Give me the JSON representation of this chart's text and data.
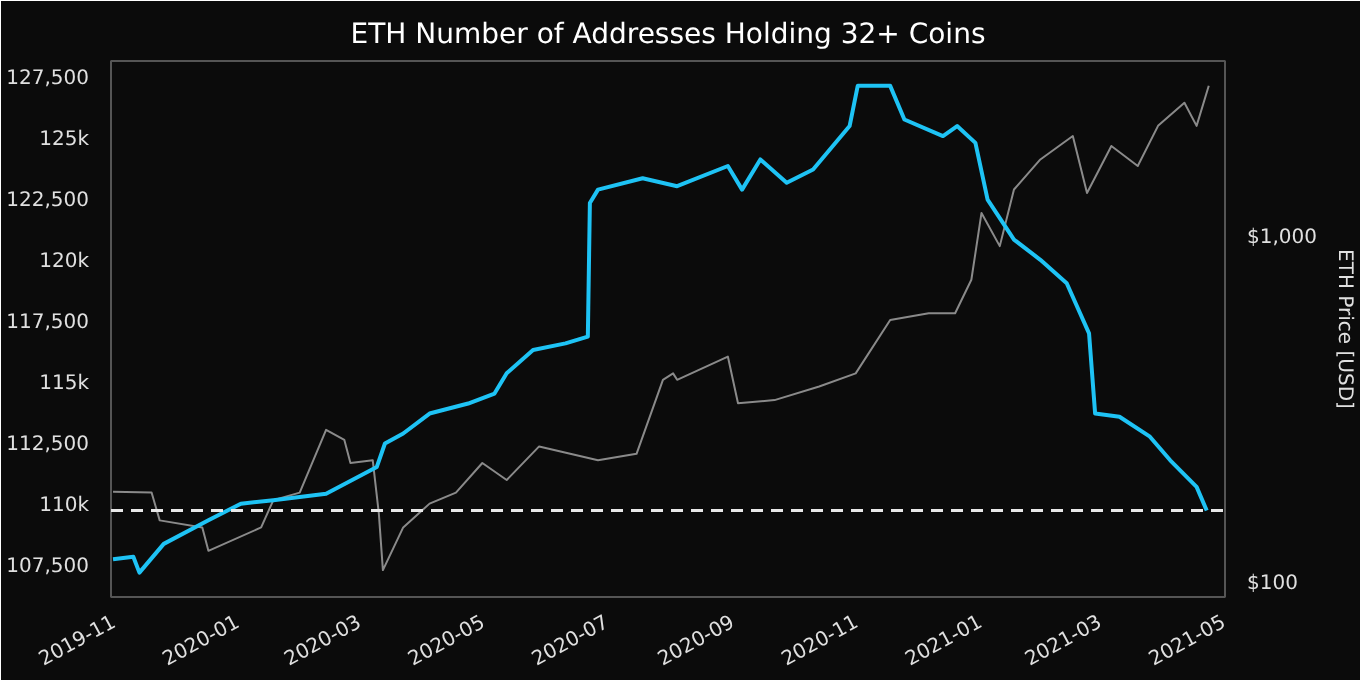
{
  "chart_data": {
    "type": "line",
    "title": "ETH Number of Addresses Holding 32+ Coins",
    "y2label": "ETH Price [USD]",
    "xlim": [
      "2019-10-31",
      "2021-05-02"
    ],
    "xticks": [
      {
        "value": "2019-11-01",
        "label": "2019-11"
      },
      {
        "value": "2020-01-01",
        "label": "2020-01"
      },
      {
        "value": "2020-03-01",
        "label": "2020-03"
      },
      {
        "value": "2020-05-01",
        "label": "2020-05"
      },
      {
        "value": "2020-07-01",
        "label": "2020-07"
      },
      {
        "value": "2020-09-01",
        "label": "2020-09"
      },
      {
        "value": "2020-11-01",
        "label": "2020-11"
      },
      {
        "value": "2021-01-01",
        "label": "2021-01"
      },
      {
        "value": "2021-03-01",
        "label": "2021-03"
      },
      {
        "value": "2021-05-01",
        "label": "2021-05"
      }
    ],
    "ylim": [
      106250,
      128250
    ],
    "yticks": [
      {
        "value": 107500,
        "label": "107,500"
      },
      {
        "value": 110000,
        "label": "110k"
      },
      {
        "value": 112500,
        "label": "112,500"
      },
      {
        "value": 115000,
        "label": "115k"
      },
      {
        "value": 117500,
        "label": "117,500"
      },
      {
        "value": 120000,
        "label": "120k"
      },
      {
        "value": 122500,
        "label": "122,500"
      },
      {
        "value": 125000,
        "label": "125k"
      },
      {
        "value": 127500,
        "label": "127,500"
      }
    ],
    "y2lim": [
      92,
      3230
    ],
    "y2ticks": [
      {
        "value": 100,
        "label": "$100"
      },
      {
        "value": 1000,
        "label": "$1,000"
      }
    ],
    "log": "y2",
    "grid": false,
    "marker": "none",
    "line_style": "solid",
    "ref_lines": [
      {
        "axis": "y",
        "value": 109800,
        "label": null,
        "color": "#e8e8e8",
        "line_style": "dashed"
      }
    ],
    "series": [
      {
        "color": "#8a8a8a",
        "axis": "y2",
        "x": [
          "2019-11-01",
          "2019-11-20",
          "2019-11-24",
          "2019-12-15",
          "2019-12-18",
          "2020-01-13",
          "2020-01-19",
          "2020-02-01",
          "2020-02-14",
          "2020-02-23",
          "2020-02-26",
          "2020-03-08",
          "2020-03-11",
          "2020-03-13",
          "2020-03-23",
          "2020-04-05",
          "2020-04-18",
          "2020-05-01",
          "2020-05-13",
          "2020-05-29",
          "2020-06-27",
          "2020-07-16",
          "2020-07-29",
          "2020-08-03",
          "2020-08-05",
          "2020-08-30",
          "2020-09-04",
          "2020-09-22",
          "2020-10-14",
          "2020-11-01",
          "2020-11-18",
          "2020-12-07",
          "2020-12-20",
          "2020-12-28",
          "2021-01-02",
          "2021-01-11",
          "2021-01-18",
          "2021-01-31",
          "2021-02-16",
          "2021-02-23",
          "2021-03-07",
          "2021-03-20",
          "2021-03-30",
          "2021-04-12",
          "2021-04-18",
          "2021-04-24"
        ],
        "values": [
          185,
          184,
          153,
          146,
          125,
          146,
          175,
          184,
          279,
          261,
          224,
          228,
          160,
          110,
          146,
          171,
          184,
          224,
          200,
          250,
          228,
          238,
          389,
          406,
          389,
          454,
          333,
          340,
          372,
          406,
          579,
          605,
          605,
          756,
          1178,
          945,
          1376,
          1680,
          1963,
          1345,
          1837,
          1608,
          2100,
          2449,
          2100,
          2740
        ]
      },
      {
        "color": "#1ec3f5",
        "axis": "y",
        "x": [
          "2019-11-01",
          "2019-11-11",
          "2019-11-14",
          "2019-11-26",
          "2019-12-18",
          "2020-01-03",
          "2020-01-19",
          "2020-02-14",
          "2020-03-10",
          "2020-03-14",
          "2020-03-23",
          "2020-04-05",
          "2020-04-24",
          "2020-05-07",
          "2020-05-13",
          "2020-05-26",
          "2020-06-11",
          "2020-06-22",
          "2020-06-23",
          "2020-06-27",
          "2020-07-19",
          "2020-08-05",
          "2020-08-30",
          "2020-09-06",
          "2020-09-15",
          "2020-09-28",
          "2020-10-11",
          "2020-10-29",
          "2020-11-02",
          "2020-11-18",
          "2020-11-25",
          "2020-12-14",
          "2020-12-21",
          "2020-12-30",
          "2021-01-05",
          "2021-01-18",
          "2021-01-31",
          "2021-02-13",
          "2021-02-24",
          "2021-02-27",
          "2021-03-11",
          "2021-03-26",
          "2021-04-05",
          "2021-04-18",
          "2021-04-23"
        ],
        "values": [
          107800,
          107900,
          107250,
          108430,
          109400,
          110080,
          110220,
          110490,
          111590,
          112550,
          112960,
          113780,
          114190,
          114600,
          115430,
          116390,
          116660,
          116940,
          122420,
          122970,
          123440,
          123110,
          123940,
          122970,
          124210,
          123250,
          123800,
          125580,
          127230,
          127230,
          125850,
          125170,
          125580,
          124890,
          122560,
          120920,
          120090,
          119130,
          117070,
          113780,
          113650,
          112830,
          111860,
          110770,
          109800
        ]
      }
    ]
  }
}
